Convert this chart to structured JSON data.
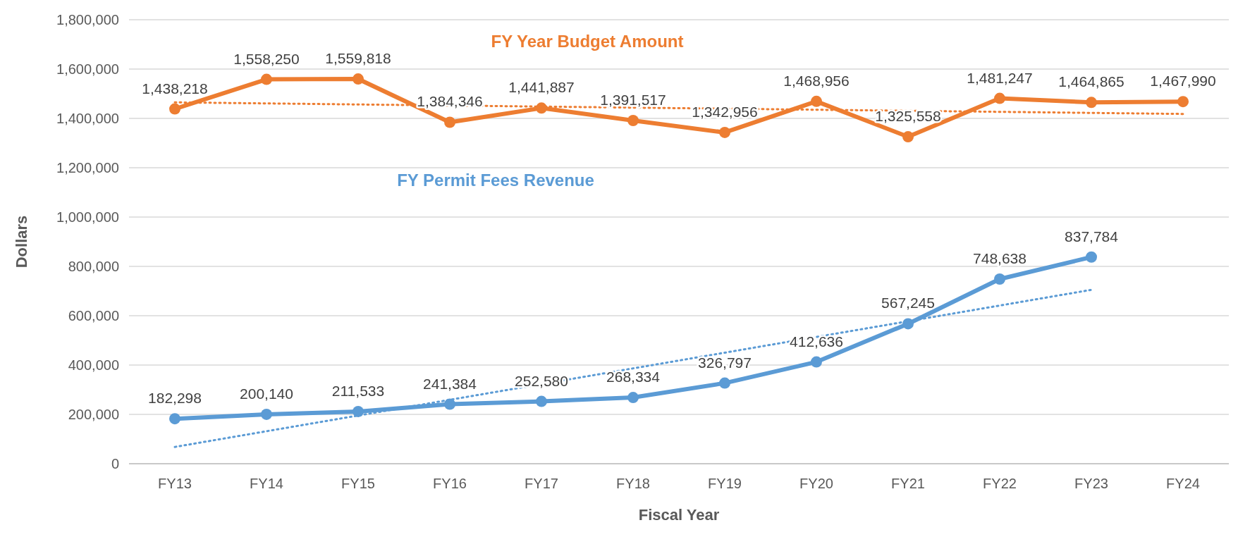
{
  "chart_data": {
    "type": "line",
    "xlabel": "Fiscal Year",
    "ylabel": "Dollars",
    "categories": [
      "FY13",
      "FY14",
      "FY15",
      "FY16",
      "FY17",
      "FY18",
      "FY19",
      "FY20",
      "FY21",
      "FY22",
      "FY23",
      "FY24"
    ],
    "series": [
      {
        "name": "FY Year Budget Amount",
        "color": "#ed7d31",
        "values": [
          1438218,
          1558250,
          1559818,
          1384346,
          1441887,
          1391517,
          1342956,
          1468956,
          1325558,
          1481247,
          1464865,
          1467990
        ],
        "value_labels": [
          "1,438,218",
          "1,558,250",
          "1,559,818",
          "1,384,346",
          "1,441,887",
          "1,391,517",
          "1,342,956",
          "1,468,956",
          "1,325,558",
          "1,481,247",
          "1,464,865",
          "1,467,990"
        ],
        "marker": "circle",
        "line_style": "solid"
      },
      {
        "name": "FY Permit Fees Revenue",
        "color": "#5b9bd5",
        "values": [
          182298,
          200140,
          211533,
          241384,
          252580,
          268334,
          326797,
          412636,
          567245,
          748638,
          837784,
          null
        ],
        "value_labels": [
          "182,298",
          "200,140",
          "211,533",
          "241,384",
          "252,580",
          "268,334",
          "326,797",
          "412,636",
          "567,245",
          "748,638",
          "837,784",
          null
        ],
        "marker": "circle",
        "line_style": "solid"
      },
      {
        "color": "#ed7d31",
        "x": [
          "FY13",
          "FY24"
        ],
        "values": [
          1465000,
          1418000
        ],
        "marker": "none",
        "line_style": "dotted"
      },
      {
        "color": "#5b9bd5",
        "x": [
          "FY13",
          "FY23"
        ],
        "values": [
          68000,
          705000
        ],
        "marker": "none",
        "line_style": "dotted"
      }
    ],
    "ylim": [
      0,
      1800000
    ],
    "yticks": [
      {
        "value": 0,
        "label": "0"
      },
      {
        "value": 200000,
        "label": "200,000"
      },
      {
        "value": 400000,
        "label": "400,000"
      },
      {
        "value": 600000,
        "label": "600,000"
      },
      {
        "value": 800000,
        "label": "800,000"
      },
      {
        "value": 1000000,
        "label": "1,000,000"
      },
      {
        "value": 1200000,
        "label": "1,200,000"
      },
      {
        "value": 1400000,
        "label": "1,400,000"
      },
      {
        "value": 1600000,
        "label": "1,600,000"
      },
      {
        "value": 1800000,
        "label": "1,800,000"
      }
    ],
    "grid": "y"
  }
}
